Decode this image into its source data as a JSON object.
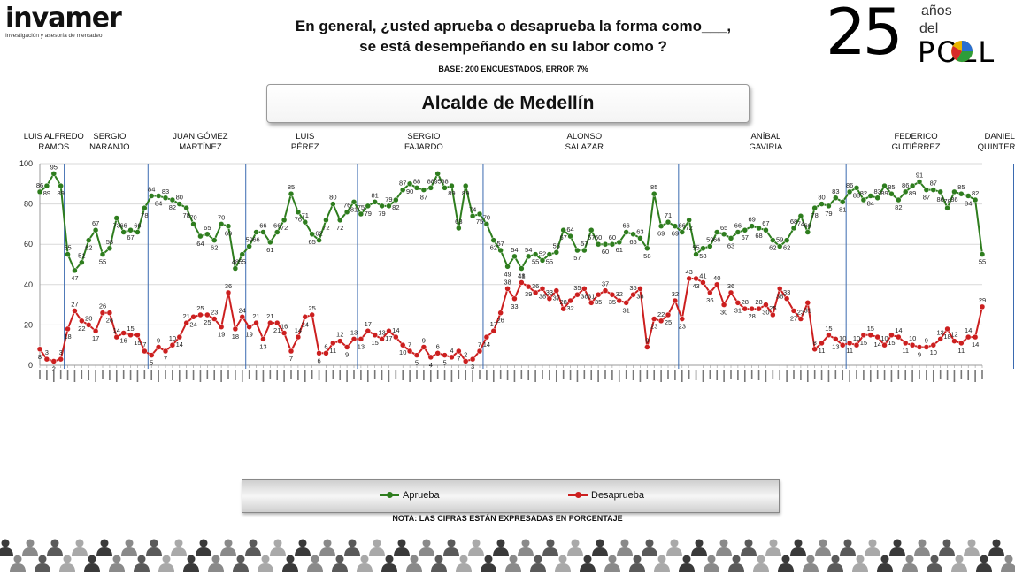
{
  "logo_left": {
    "brand": "invamer",
    "tagline": "Investigación y asesoría de mercadeo"
  },
  "header": {
    "question_line1": "En general, ¿usted aprueba o desaprueba la forma como___,",
    "question_line2": "se está desempeñando en su labor como ?",
    "base": "BASE: 200 ENCUESTADOS, ERROR 7%"
  },
  "logo_right": {
    "number": "25",
    "anos": "años",
    "del": "del",
    "poll": "POLL"
  },
  "title": "Alcalde de Medellín",
  "legend": {
    "approve": "Aprueba",
    "disapprove": "Desaprueba"
  },
  "note": "NOTA: LAS CIFRAS ESTÁN EXPRESADAS EN PORCENTAJE",
  "colors": {
    "approve": "#2e7d1e",
    "disapprove": "#cc1f1f",
    "divider": "#3a6ab0",
    "grid": "#d9d9d9"
  },
  "chart_data": {
    "type": "line",
    "ylim": [
      0,
      100
    ],
    "yticks": [
      0,
      20,
      40,
      60,
      80,
      100
    ],
    "grid": true,
    "legend_position": "bottom",
    "periods": [
      {
        "label": [
          "LUIS ALFREDO",
          "RAMOS"
        ],
        "start": 0,
        "end": 4
      },
      {
        "label": [
          "SERGIO",
          "NARANJO"
        ],
        "start": 4,
        "end": 16
      },
      {
        "label": [
          "JUAN GÓMEZ",
          "MARTÍNEZ"
        ],
        "start": 16,
        "end": 30
      },
      {
        "label": [
          "LUIS",
          "PÉREZ"
        ],
        "start": 30,
        "end": 46
      },
      {
        "label": [
          "SERGIO",
          "FAJARDO"
        ],
        "start": 46,
        "end": 64
      },
      {
        "label": [
          "ALONSO",
          "SALAZAR"
        ],
        "start": 64,
        "end": 92
      },
      {
        "label": [
          "ANÍBAL",
          "GAVIRIA"
        ],
        "start": 92,
        "end": 116
      },
      {
        "label": [
          "FEDERICO",
          "GUTIÉRREZ"
        ],
        "start": 116,
        "end": 140
      },
      {
        "label": [
          "DANIEL",
          "QUINTERO"
        ],
        "start": 140,
        "end": 141
      }
    ],
    "series": [
      {
        "name": "Aprueba",
        "values": [
          86,
          89,
          95,
          89,
          55,
          47,
          51,
          62,
          67,
          55,
          58,
          73,
          66,
          67,
          66,
          78,
          84,
          84,
          83,
          82,
          80,
          78,
          70,
          64,
          65,
          62,
          70,
          69,
          48,
          55,
          59,
          66,
          66,
          61,
          66,
          72,
          85,
          76,
          71,
          65,
          62,
          72,
          80,
          72,
          76,
          81,
          75,
          79,
          81,
          79,
          79,
          82,
          87,
          90,
          88,
          87,
          88,
          95,
          88,
          89,
          68,
          89,
          74,
          75,
          70,
          62,
          57,
          49,
          54,
          48,
          54,
          55,
          52,
          55,
          56,
          67,
          64,
          57,
          57,
          67,
          60,
          60,
          60,
          61,
          66,
          65,
          63,
          58,
          85,
          69,
          71,
          69,
          66,
          72,
          55,
          58,
          59,
          66,
          65,
          63,
          66,
          67,
          69,
          68,
          67,
          62,
          59,
          62,
          68,
          74,
          66,
          78,
          80,
          79,
          83,
          81,
          86,
          88,
          82,
          84,
          83,
          89,
          85,
          82,
          86,
          89,
          91,
          87,
          87,
          86,
          78,
          86,
          85,
          84,
          82,
          55
        ]
      },
      {
        "name": "Desaprueba",
        "values": [
          8,
          3,
          2,
          3,
          18,
          27,
          22,
          20,
          17,
          26,
          26,
          14,
          16,
          15,
          15,
          7,
          5,
          9,
          7,
          10,
          14,
          21,
          24,
          25,
          25,
          23,
          19,
          36,
          18,
          24,
          19,
          21,
          13,
          21,
          21,
          16,
          7,
          14,
          24,
          25,
          6,
          6,
          11,
          12,
          9,
          13,
          13,
          17,
          15,
          13,
          17,
          14,
          10,
          7,
          5,
          9,
          4,
          6,
          5,
          4,
          7,
          2,
          3,
          7,
          14,
          17,
          26,
          38,
          33,
          41,
          39,
          36,
          38,
          33,
          37,
          28,
          32,
          35,
          38,
          31,
          35,
          37,
          35,
          32,
          31,
          35,
          38,
          9,
          23,
          22,
          25,
          32,
          23,
          43,
          43,
          41,
          36,
          40,
          30,
          36,
          31,
          28,
          28,
          28,
          30,
          25,
          38,
          33,
          27,
          23,
          31,
          8,
          11,
          15,
          13,
          10,
          11,
          10,
          15,
          15,
          14,
          10,
          15,
          14,
          11,
          10,
          9,
          9,
          10,
          13,
          18,
          12,
          11,
          14,
          14,
          29
        ]
      }
    ]
  }
}
